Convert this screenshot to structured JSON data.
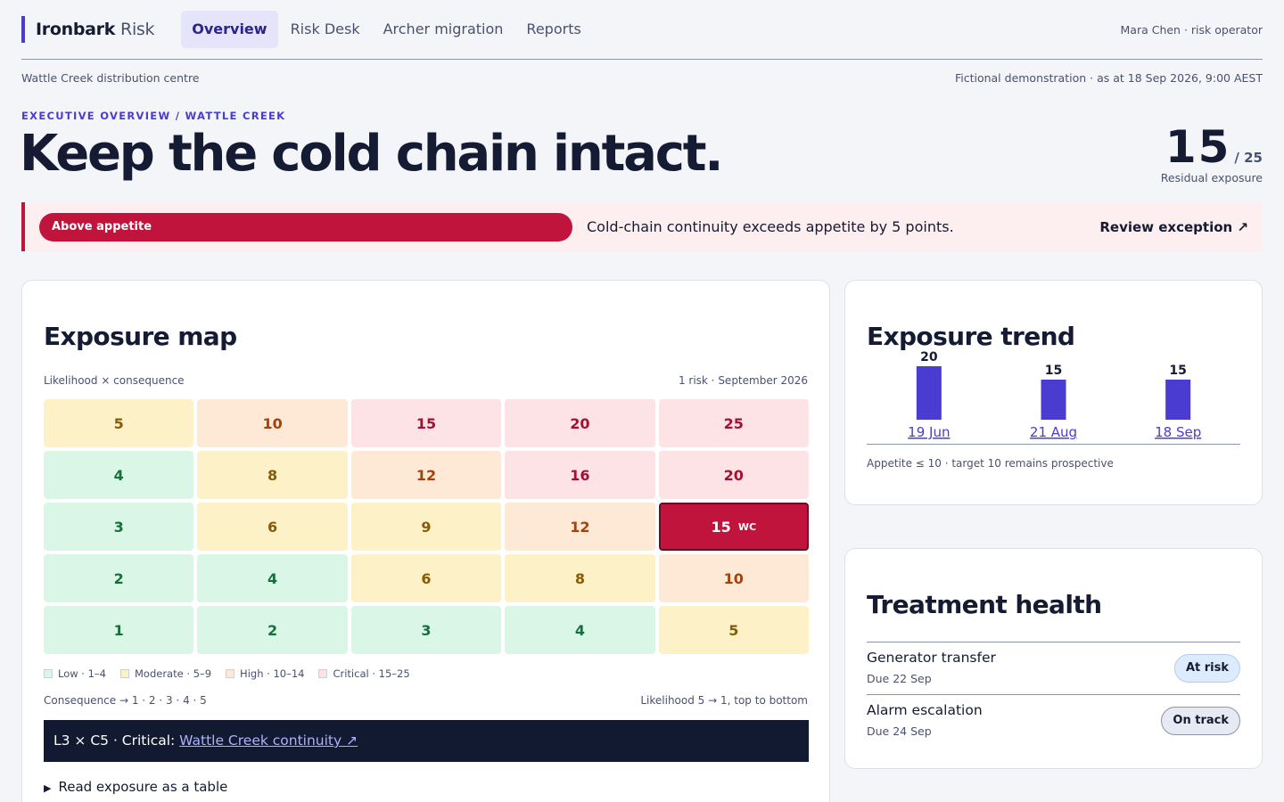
{
  "nav": {
    "brand_bold": "Ironbark",
    "brand_light": "Risk",
    "tabs": [
      {
        "label": "Overview",
        "active": true
      },
      {
        "label": "Risk Desk",
        "active": false
      },
      {
        "label": "Archer migration",
        "active": false
      },
      {
        "label": "Reports",
        "active": false
      }
    ],
    "user": "Mara Chen · risk operator"
  },
  "context": {
    "location": "Wattle Creek distribution centre",
    "as_at": "Fictional demonstration · as at 18 Sep 2026, 9:00 AEST"
  },
  "hero": {
    "eyebrow": "EXECUTIVE OVERVIEW / WATTLE CREEK",
    "title": "Keep the cold chain intact.",
    "score": "15",
    "score_max": "/ 25",
    "score_label": "Residual exposure"
  },
  "alert": {
    "pill": "Above appetite",
    "message": "Cold-chain continuity exceeds appetite by 5 points.",
    "action": "Review exception ↗",
    "color": "#c0143c"
  },
  "exposure_map": {
    "title": "Exposure map",
    "subtitle": "Likelihood × consequence",
    "count": "1 risk · September 2026",
    "rows": [
      [
        {
          "v": "5",
          "band": "mod"
        },
        {
          "v": "10",
          "band": "high"
        },
        {
          "v": "15",
          "band": "crit"
        },
        {
          "v": "20",
          "band": "crit"
        },
        {
          "v": "25",
          "band": "crit"
        }
      ],
      [
        {
          "v": "4",
          "band": "low"
        },
        {
          "v": "8",
          "band": "mod"
        },
        {
          "v": "12",
          "band": "high"
        },
        {
          "v": "16",
          "band": "crit"
        },
        {
          "v": "20",
          "band": "crit"
        }
      ],
      [
        {
          "v": "3",
          "band": "low"
        },
        {
          "v": "6",
          "band": "mod"
        },
        {
          "v": "9",
          "band": "mod"
        },
        {
          "v": "12",
          "band": "high"
        },
        {
          "v": "15",
          "band": "sel",
          "tag": "WC"
        }
      ],
      [
        {
          "v": "2",
          "band": "low"
        },
        {
          "v": "4",
          "band": "low"
        },
        {
          "v": "6",
          "band": "mod"
        },
        {
          "v": "8",
          "band": "mod"
        },
        {
          "v": "10",
          "band": "high"
        }
      ],
      [
        {
          "v": "1",
          "band": "low"
        },
        {
          "v": "2",
          "band": "low"
        },
        {
          "v": "3",
          "band": "low"
        },
        {
          "v": "4",
          "band": "low"
        },
        {
          "v": "5",
          "band": "mod"
        }
      ]
    ],
    "legend": [
      {
        "label": "Low · 1–4",
        "color": "#daf6e6"
      },
      {
        "label": "Moderate · 5–9",
        "color": "#fdf1c8"
      },
      {
        "label": "High · 10–14",
        "color": "#fde9d6"
      },
      {
        "label": "Critical · 15–25",
        "color": "#fde2e6"
      }
    ],
    "axis_consequence": "Consequence →   1 · 2 · 3 · 4 · 5",
    "axis_likelihood": "Likelihood 5 → 1, top to bottom",
    "focus_prefix": "L3 × C5 · Critical: ",
    "focus_link": "Wattle Creek continuity ↗",
    "details": "Read exposure as a table"
  },
  "trend": {
    "title": "Exposure trend",
    "note": "Appetite ≤ 10 · target 10 remains prospective",
    "bar_color": "#4a3bd1"
  },
  "chart_data": {
    "type": "bar",
    "title": "Exposure trend",
    "categories": [
      "19 Jun",
      "21 Aug",
      "18 Sep"
    ],
    "values": [
      20,
      15,
      15
    ],
    "ylim": [
      0,
      25
    ],
    "xlabel": "",
    "ylabel": ""
  },
  "health": {
    "title": "Treatment health",
    "items": [
      {
        "name": "Generator transfer",
        "due": "Due 22 Sep",
        "status": "At risk",
        "kind": "atrisk"
      },
      {
        "name": "Alarm escalation",
        "due": "Due 24 Sep",
        "status": "On track",
        "kind": "ontrack"
      }
    ]
  }
}
